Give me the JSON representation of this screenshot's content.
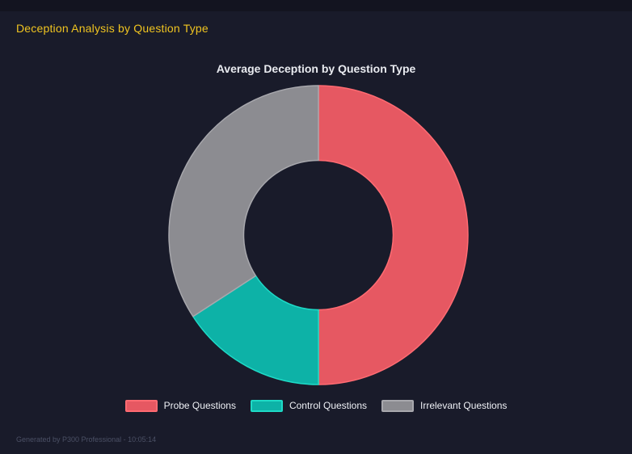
{
  "page": {
    "title": "Deception Analysis by Question Type",
    "footer": "Generated by P300 Professional - 10:05:14",
    "background_color": "#191b2a",
    "top_strip_color": "#131420",
    "title_color": "#f0c420",
    "footer_color": "#4b5065"
  },
  "chart_data": {
    "type": "pie",
    "subtype": "doughnut",
    "title": "Average Deception by Question Type",
    "title_color": "#e9ebf0",
    "categories": [
      "Probe Questions",
      "Control Questions",
      "Irrelevant Questions"
    ],
    "values": [
      50.0,
      15.8,
      34.2
    ],
    "angles_deg": [
      [
        0,
        180
      ],
      [
        180,
        237
      ],
      [
        237,
        360
      ]
    ],
    "colors": [
      "#e65862",
      "#0db2a7",
      "#8c8c91"
    ],
    "border_colors": [
      "#ff6b72",
      "#1edac6",
      "#a8a8ad"
    ],
    "cutout_ratio": 0.5,
    "start_angle": "top",
    "direction": "clockwise",
    "legend_position": "bottom",
    "legend_text_color": "#eef0f5"
  }
}
